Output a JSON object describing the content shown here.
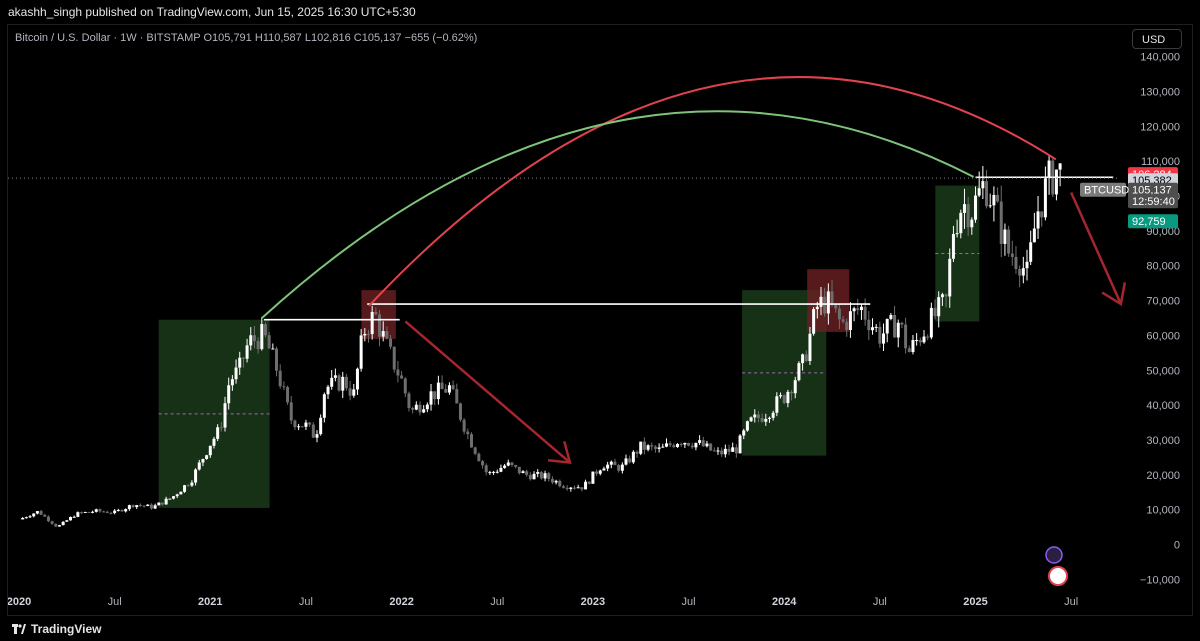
{
  "publish_info": "akashh_singh published on TradingView.com, Jun 15, 2025 16:30 UTC+5:30",
  "symbol": {
    "name": "Bitcoin / U.S. Dollar · 1W · BITSTAMP",
    "o_label": "O",
    "o": "105,791",
    "h_label": "H",
    "h": "110,587",
    "l_label": "L",
    "l": "102,816",
    "c_label": "C",
    "c": "105,137",
    "change": "−655 (−0.62%)"
  },
  "currency_button": "USD",
  "footer": {
    "brand": "TradingView"
  },
  "price_labels": {
    "red": "106,284",
    "white": "105,382",
    "btcusd_tag": "BTCUSD",
    "last": "105,137",
    "countdown": "12:59:40",
    "green": "92,759"
  },
  "colors": {
    "up_candle": "#ffffff",
    "down_candle": "#6e6e6e",
    "green_zone": "#1a3a1a",
    "red_zone": "#6b1f23",
    "red_arc": "#e0434e",
    "green_arc": "#7dc47a",
    "arrow": "#a5262e",
    "red_tag": "#f23645",
    "green_tag": "#089981",
    "gray_tag": "#4e4e4e"
  },
  "chart_data": {
    "type": "candlestick",
    "title": "Bitcoin / U.S. Dollar · 1W · BITSTAMP",
    "y_axis": {
      "ticks": [
        -10000,
        0,
        10000,
        20000,
        30000,
        40000,
        50000,
        60000,
        70000,
        80000,
        90000,
        100000,
        110000,
        120000,
        130000,
        140000
      ],
      "tick_labels": [
        "−10,000",
        "0",
        "10,000",
        "20,000",
        "30,000",
        "40,000",
        "50,000",
        "60,000",
        "70,000",
        "80,000",
        "90,000",
        "100,000",
        "110,000",
        "120,000",
        "130,000",
        "140,000"
      ],
      "range": [
        -13000,
        146000
      ]
    },
    "x_axis": {
      "tick_labels": [
        "2020",
        "Jul",
        "2021",
        "Jul",
        "2022",
        "Jul",
        "2023",
        "Jul",
        "2024",
        "Jul",
        "2025",
        "Jul"
      ],
      "tick_years": [
        2020.0,
        2020.5,
        2021.0,
        2021.5,
        2022.0,
        2022.5,
        2023.0,
        2023.5,
        2024.0,
        2024.5,
        2025.0,
        2025.5
      ],
      "range": [
        2019.96,
        2026.05
      ]
    },
    "price_path": [
      [
        2020.0,
        7200
      ],
      [
        2020.1,
        9500
      ],
      [
        2020.2,
        5000
      ],
      [
        2020.3,
        8800
      ],
      [
        2020.4,
        9600
      ],
      [
        2020.5,
        9200
      ],
      [
        2020.6,
        11500
      ],
      [
        2020.7,
        10700
      ],
      [
        2020.8,
        13500
      ],
      [
        2020.9,
        18500
      ],
      [
        2021.0,
        29000
      ],
      [
        2021.05,
        33000
      ],
      [
        2021.1,
        47000
      ],
      [
        2021.15,
        50000
      ],
      [
        2021.2,
        58000
      ],
      [
        2021.28,
        60000
      ],
      [
        2021.35,
        50000
      ],
      [
        2021.42,
        36000
      ],
      [
        2021.5,
        34000
      ],
      [
        2021.55,
        31000
      ],
      [
        2021.6,
        45000
      ],
      [
        2021.7,
        47000
      ],
      [
        2021.75,
        43000
      ],
      [
        2021.8,
        61000
      ],
      [
        2021.86,
        66000
      ],
      [
        2021.92,
        57000
      ],
      [
        2022.0,
        47000
      ],
      [
        2022.05,
        38000
      ],
      [
        2022.15,
        43000
      ],
      [
        2022.25,
        45000
      ],
      [
        2022.35,
        31000
      ],
      [
        2022.45,
        20000
      ],
      [
        2022.55,
        23000
      ],
      [
        2022.65,
        20000
      ],
      [
        2022.75,
        19500
      ],
      [
        2022.85,
        17000
      ],
      [
        2022.95,
        16500
      ],
      [
        2023.05,
        23000
      ],
      [
        2023.15,
        22000
      ],
      [
        2023.25,
        28000
      ],
      [
        2023.35,
        27000
      ],
      [
        2023.45,
        30000
      ],
      [
        2023.55,
        29000
      ],
      [
        2023.65,
        26000
      ],
      [
        2023.75,
        27500
      ],
      [
        2023.82,
        35000
      ],
      [
        2023.9,
        37500
      ],
      [
        2024.0,
        42500
      ],
      [
        2024.1,
        52000
      ],
      [
        2024.17,
        68000
      ],
      [
        2024.22,
        70000
      ],
      [
        2024.3,
        63000
      ],
      [
        2024.4,
        68000
      ],
      [
        2024.5,
        60000
      ],
      [
        2024.6,
        64000
      ],
      [
        2024.65,
        55000
      ],
      [
        2024.75,
        63000
      ],
      [
        2024.85,
        70000
      ],
      [
        2024.88,
        90000
      ],
      [
        2024.93,
        98000
      ],
      [
        2024.98,
        96000
      ],
      [
        2025.05,
        104000
      ],
      [
        2025.1,
        97000
      ],
      [
        2025.17,
        84000
      ],
      [
        2025.23,
        82000
      ],
      [
        2025.27,
        77000
      ],
      [
        2025.32,
        95000
      ],
      [
        2025.38,
        104000
      ],
      [
        2025.43,
        108000
      ],
      [
        2025.46,
        105137
      ]
    ],
    "annotations": {
      "zones": [
        {
          "color": "green",
          "x": [
            2020.73,
            2021.31
          ],
          "y": [
            10500,
            64500
          ]
        },
        {
          "color": "red",
          "x": [
            2021.79,
            2021.97
          ],
          "y": [
            59000,
            73000
          ]
        },
        {
          "color": "green",
          "x": [
            2023.78,
            2024.22
          ],
          "y": [
            25500,
            73000
          ]
        },
        {
          "color": "red",
          "x": [
            2024.12,
            2024.34
          ],
          "y": [
            61000,
            79000
          ]
        },
        {
          "color": "green",
          "x": [
            2024.79,
            2025.02
          ],
          "y": [
            64000,
            103000
          ]
        }
      ],
      "horizontal_lines": [
        {
          "x": [
            2021.28,
            2021.99
          ],
          "y": 64500
        },
        {
          "x": [
            2021.82,
            2024.45
          ],
          "y": 69000
        },
        {
          "x": [
            2025.0,
            2025.72
          ],
          "y": 105382
        }
      ],
      "arcs": [
        {
          "color": "red",
          "from": [
            2021.83,
            68500
          ],
          "to": [
            2025.42,
            110500
          ],
          "peak": 131500
        },
        {
          "color": "green",
          "from": [
            2021.27,
            65000
          ],
          "to": [
            2024.99,
            105500
          ],
          "peak": 121500
        }
      ],
      "arrows": [
        {
          "from": [
            2022.02,
            64000
          ],
          "to": [
            2022.88,
            23500
          ]
        },
        {
          "from": [
            2025.5,
            101000
          ],
          "to": [
            2025.76,
            69000
          ]
        }
      ]
    }
  }
}
